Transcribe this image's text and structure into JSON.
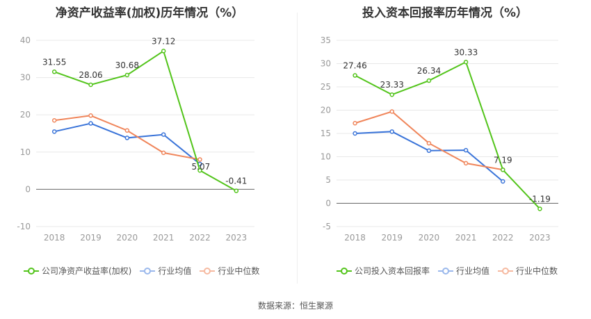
{
  "source_label": "数据来源：恒生聚源",
  "chart_data": [
    {
      "type": "line",
      "title": "净资产收益率(加权)历年情况（%）",
      "categories": [
        "2018",
        "2019",
        "2020",
        "2021",
        "2022",
        "2023"
      ],
      "ylim": [
        -10,
        40
      ],
      "yticks": [
        -10,
        0,
        10,
        20,
        30,
        40
      ],
      "grid": true,
      "legend_position": "bottom",
      "series": [
        {
          "name": "公司净资产收益率(加权)",
          "color": "#52c41a",
          "values": [
            31.55,
            28.06,
            30.68,
            37.12,
            5.07,
            -0.41
          ],
          "labels": [
            "31.55",
            "28.06",
            "30.68",
            "37.12",
            "5.07",
            "-0.41"
          ]
        },
        {
          "name": "行业均值",
          "color": "#3a74d9",
          "values": [
            15.5,
            17.7,
            13.8,
            14.7,
            6.8,
            null
          ]
        },
        {
          "name": "行业中位数",
          "color": "#f0855a",
          "values": [
            18.5,
            19.8,
            15.8,
            9.8,
            8.0,
            null
          ]
        }
      ]
    },
    {
      "type": "line",
      "title": "投入资本回报率历年情况（%）",
      "categories": [
        "2018",
        "2019",
        "2020",
        "2021",
        "2022",
        "2023"
      ],
      "ylim": [
        -5,
        35
      ],
      "yticks": [
        -5,
        0,
        5,
        10,
        15,
        20,
        25,
        30,
        35
      ],
      "grid": true,
      "legend_position": "bottom",
      "series": [
        {
          "name": "公司投入资本回报率",
          "color": "#52c41a",
          "values": [
            27.46,
            23.33,
            26.34,
            30.33,
            7.19,
            -1.19
          ],
          "labels": [
            "27.46",
            "23.33",
            "26.34",
            "30.33",
            "7.19",
            "-1.19"
          ]
        },
        {
          "name": "行业均值",
          "color": "#3a74d9",
          "values": [
            15.0,
            15.4,
            11.3,
            11.4,
            4.7,
            null
          ]
        },
        {
          "name": "行业中位数",
          "color": "#f0855a",
          "values": [
            17.2,
            19.7,
            12.9,
            8.6,
            7.2,
            null
          ]
        }
      ]
    }
  ]
}
